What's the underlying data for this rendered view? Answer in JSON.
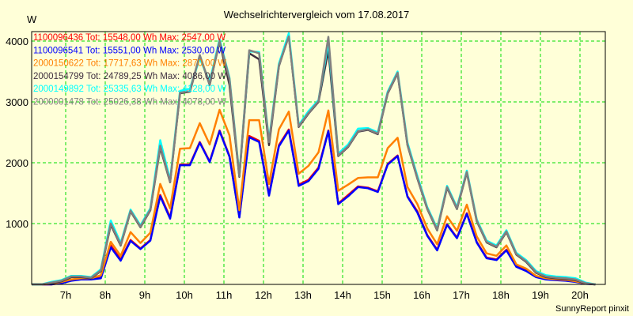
{
  "chart_data": {
    "type": "line",
    "title": "Wechselrichtervergleich vom 17.08.2017",
    "ylabel": "W",
    "xlabel": "",
    "footer": "SunnyReport pinxit",
    "xlim": [
      6.14,
      20.5
    ],
    "ylim": [
      0,
      4200
    ],
    "yticks": [
      {
        "v": 1000,
        "label": "1000"
      },
      {
        "v": 2000,
        "label": "2000"
      },
      {
        "v": 3000,
        "label": "3000"
      },
      {
        "v": 4000,
        "label": "4000"
      }
    ],
    "xticks": [
      {
        "v": 7,
        "label": "7h"
      },
      {
        "v": 8,
        "label": "8h"
      },
      {
        "v": 9,
        "label": "9h"
      },
      {
        "v": 10,
        "label": "10h"
      },
      {
        "v": 11,
        "label": "11h"
      },
      {
        "v": 12,
        "label": "12h"
      },
      {
        "v": 13,
        "label": "13h"
      },
      {
        "v": 14,
        "label": "14h"
      },
      {
        "v": 15,
        "label": "15h"
      },
      {
        "v": 16,
        "label": "16h"
      },
      {
        "v": 17,
        "label": "17h"
      },
      {
        "v": 18,
        "label": "18h"
      },
      {
        "v": 19,
        "label": "19h"
      },
      {
        "v": 20,
        "label": "20h"
      }
    ],
    "grid": true,
    "legend_position": "top-left",
    "x_start": 6.14,
    "x_step_hours": 0.25,
    "series": [
      {
        "name": "1100096436",
        "legend": "1100096436 Tot: 15548,00 Wh Max: 2547,00 W",
        "color": "#ff0000",
        "values": [
          0,
          0,
          0,
          25,
          65,
          85,
          85,
          110,
          640,
          410,
          730,
          590,
          730,
          1470,
          1100,
          1970,
          1970,
          2340,
          2020,
          2530,
          2110,
          1120,
          2440,
          2360,
          1480,
          2290,
          2547,
          1640,
          1720,
          1920,
          2530,
          1330,
          1470,
          1610,
          1590,
          1530,
          1980,
          2120,
          1450,
          1200,
          810,
          570,
          990,
          770,
          1170,
          700,
          440,
          410,
          570,
          300,
          230,
          130,
          90,
          80,
          70,
          50,
          15,
          0
        ]
      },
      {
        "name": "1100096541",
        "legend": "1100096541 Tot: 15551,00 Wh Max: 2530,00 W",
        "color": "#0000ff",
        "values": [
          0,
          0,
          0,
          20,
          60,
          80,
          80,
          100,
          610,
          390,
          715,
          580,
          720,
          1450,
          1080,
          1960,
          1960,
          2330,
          2010,
          2520,
          2100,
          1100,
          2420,
          2340,
          1460,
          2270,
          2530,
          1620,
          1700,
          1900,
          2520,
          1320,
          1450,
          1600,
          1580,
          1520,
          1970,
          2110,
          1440,
          1180,
          800,
          560,
          980,
          760,
          1160,
          690,
          430,
          400,
          560,
          290,
          220,
          120,
          80,
          70,
          60,
          40,
          10,
          0
        ]
      },
      {
        "name": "2000150622",
        "legend": "2000150622 Tot: 17717,63 Wh Max: 2870,00 W",
        "color": "#ff8000",
        "values": [
          0,
          0,
          10,
          40,
          80,
          100,
          100,
          150,
          700,
          470,
          860,
          680,
          850,
          1650,
          1250,
          2230,
          2240,
          2650,
          2300,
          2870,
          2450,
          1220,
          2700,
          2700,
          1650,
          2550,
          2840,
          1820,
          1950,
          2170,
          2860,
          1540,
          1640,
          1750,
          1760,
          1760,
          2240,
          2410,
          1600,
          1320,
          920,
          660,
          1120,
          880,
          1310,
          790,
          510,
          470,
          640,
          330,
          260,
          140,
          100,
          85,
          75,
          50,
          15,
          0
        ]
      },
      {
        "name": "2000154799",
        "legend": "2000154799 Tot: 24789,25 Wh Max: 4086,00 W",
        "color": "#403040",
        "values": [
          0,
          0,
          20,
          50,
          120,
          120,
          100,
          220,
          980,
          640,
          1200,
          940,
          1220,
          2250,
          1680,
          3140,
          3170,
          3760,
          3280,
          3990,
          3280,
          1770,
          3800,
          3700,
          2290,
          3590,
          4086,
          2590,
          2810,
          3000,
          3850,
          2110,
          2260,
          2510,
          2540,
          2470,
          3140,
          3470,
          2290,
          1740,
          1240,
          890,
          1590,
          1240,
          1840,
          1040,
          690,
          610,
          860,
          490,
          370,
          190,
          120,
          100,
          90,
          70,
          15,
          0
        ]
      },
      {
        "name": "2000149892",
        "legend": "2000149892 Tot: 25335,63 Wh Max: 4128,00 W",
        "color": "#00ffff",
        "values": [
          0,
          0,
          40,
          70,
          140,
          140,
          120,
          250,
          1050,
          680,
          1230,
          970,
          1250,
          2370,
          1720,
          3180,
          3220,
          3720,
          3330,
          4030,
          3400,
          1800,
          3830,
          3820,
          2370,
          3630,
          4128,
          2620,
          2850,
          3030,
          3980,
          2150,
          2300,
          2560,
          2570,
          2500,
          3170,
          3500,
          2330,
          1780,
          1270,
          920,
          1620,
          1270,
          1870,
          1070,
          720,
          640,
          890,
          520,
          400,
          220,
          150,
          130,
          120,
          100,
          30,
          0
        ]
      },
      {
        "name": "2000001478",
        "legend": "2000001478 Tot: 25026,38 Wh Max: 4078,00 W",
        "color": "#808080",
        "values": [
          0,
          0,
          30,
          60,
          130,
          130,
          110,
          230,
          1000,
          650,
          1210,
          950,
          1230,
          2280,
          1690,
          3150,
          3180,
          3770,
          3290,
          4000,
          3380,
          1780,
          3850,
          3800,
          2340,
          3600,
          4078,
          2600,
          2820,
          3010,
          4070,
          2120,
          2270,
          2520,
          2550,
          2480,
          3150,
          3480,
          2300,
          1750,
          1250,
          900,
          1600,
          1250,
          1850,
          1050,
          700,
          620,
          870,
          500,
          380,
          200,
          130,
          110,
          100,
          80,
          20,
          0
        ]
      }
    ]
  }
}
